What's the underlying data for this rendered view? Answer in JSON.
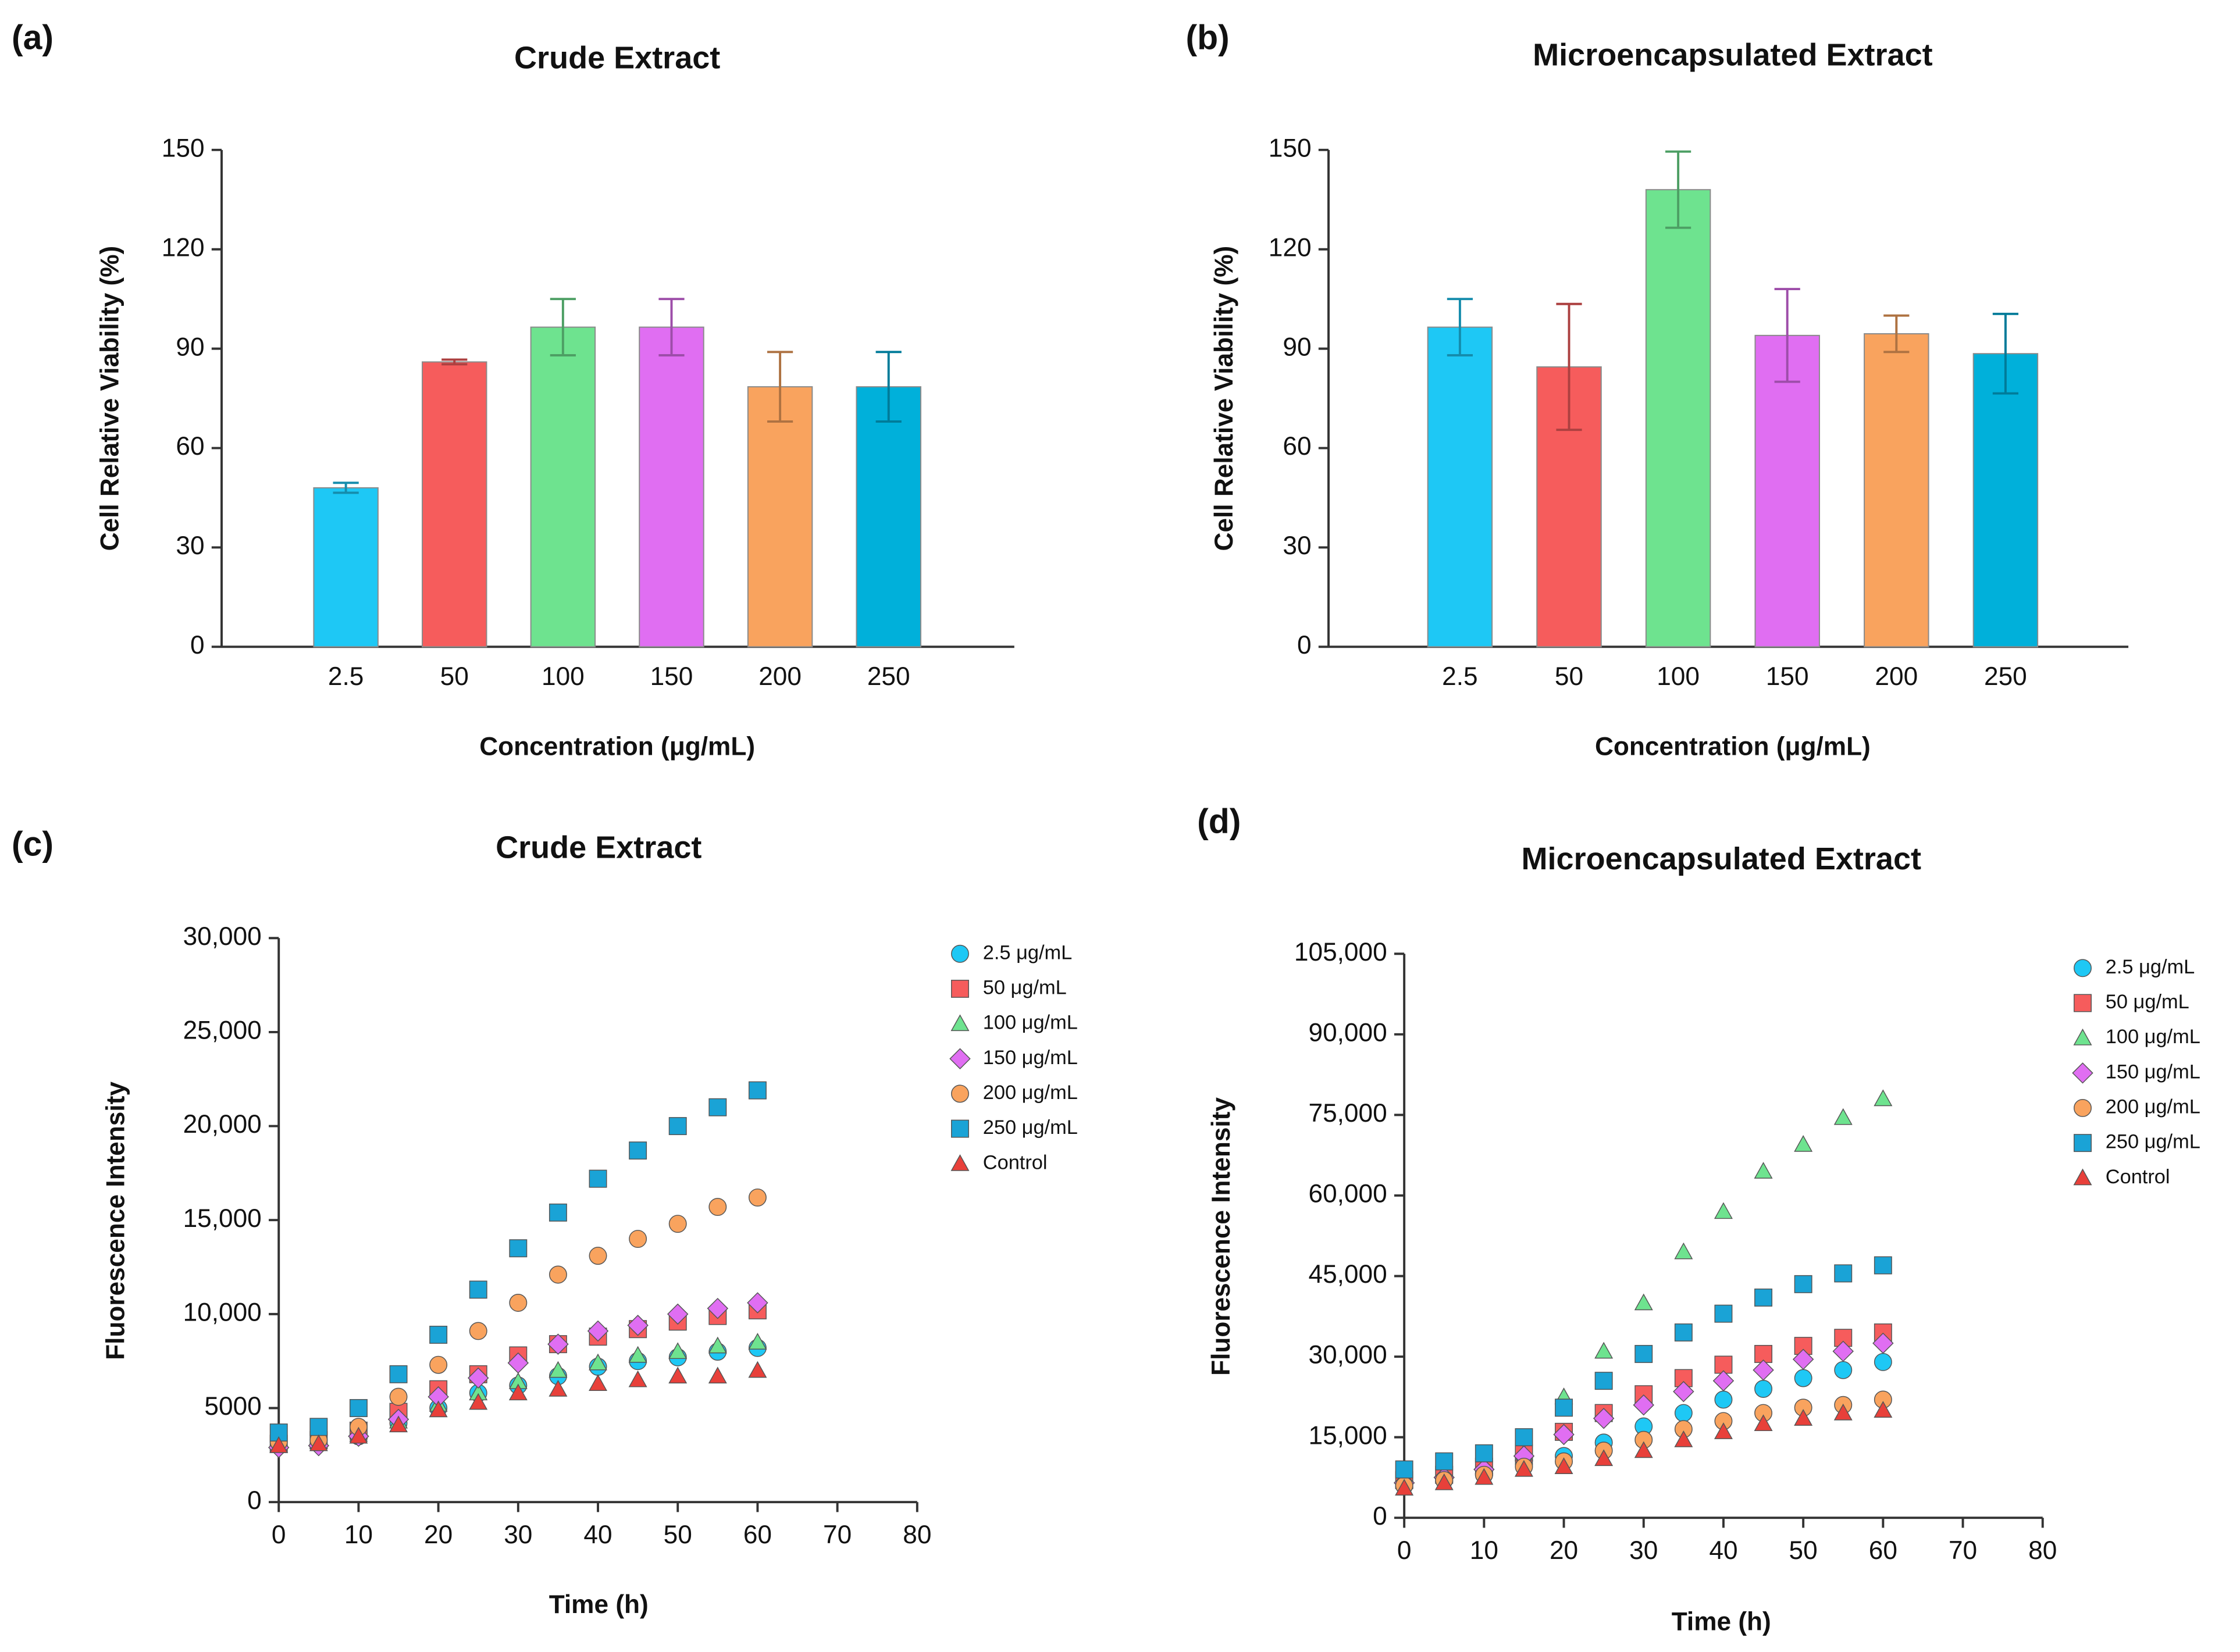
{
  "chart_data": [
    {
      "type": "bar",
      "panel_label": "(a)",
      "title": "Crude Extract",
      "x_label": "Concentration (μg/mL)",
      "y_label": "Cell Relative Viability (%)",
      "categories": [
        "2.5",
        "50",
        "100",
        "150",
        "200",
        "250"
      ],
      "values": [
        48,
        86,
        96.5,
        96.5,
        78.5,
        78.5
      ],
      "errors": [
        1.5,
        0.7,
        8.5,
        8.5,
        10.5,
        10.5
      ],
      "colors": [
        "#1ec8f5",
        "#f65c5c",
        "#6ee38f",
        "#e06ef2",
        "#f9a35e",
        "#00b0da"
      ],
      "ylim": [
        0,
        150
      ],
      "yticks": [
        0,
        30,
        60,
        90,
        120,
        150
      ]
    },
    {
      "type": "bar",
      "panel_label": "(b)",
      "title": "Microencapsulated Extract",
      "x_label": "Concentration (μg/mL)",
      "y_label": "Cell Relative Viability (%)",
      "categories": [
        "2.5",
        "50",
        "100",
        "150",
        "200",
        "250"
      ],
      "values": [
        96.5,
        84.5,
        138,
        94,
        94.5,
        88.5
      ],
      "errors": [
        8.5,
        19,
        11.5,
        14,
        5.5,
        12
      ],
      "colors": [
        "#1ec8f5",
        "#f65c5c",
        "#6ee38f",
        "#e06ef2",
        "#f9a35e",
        "#00b0da"
      ],
      "ylim": [
        0,
        150
      ],
      "yticks": [
        0,
        30,
        60,
        90,
        120,
        150
      ]
    },
    {
      "type": "scatter",
      "panel_label": "(c)",
      "title": "Crude Extract",
      "x_label": "Time (h)",
      "y_label": "Fluorescence Intensity",
      "x": [
        0,
        5,
        10,
        15,
        20,
        25,
        30,
        35,
        40,
        45,
        50,
        55,
        60
      ],
      "xlim": [
        0,
        80
      ],
      "xticks": [
        0,
        10,
        20,
        30,
        40,
        50,
        60,
        70,
        80
      ],
      "ylim": [
        0,
        30000
      ],
      "yticks": [
        0,
        5000,
        {
          "value": 10000,
          "label": "10,000"
        },
        {
          "value": 15000,
          "label": "15,000"
        },
        {
          "value": 20000,
          "label": "20,000"
        },
        {
          "value": 25000,
          "label": "25,000"
        },
        {
          "value": 30000,
          "label": "30,000"
        }
      ],
      "series": [
        {
          "name": "2.5 μg/mL",
          "color": "#1ec8f5",
          "marker": "circle",
          "values": [
            3000,
            3100,
            3500,
            4200,
            5000,
            5800,
            6200,
            6700,
            7200,
            7500,
            7700,
            8000,
            8200
          ]
        },
        {
          "name": "50 μg/mL",
          "color": "#f65c5c",
          "marker": "square",
          "values": [
            3100,
            3300,
            3800,
            4800,
            6000,
            6800,
            7800,
            8400,
            8800,
            9200,
            9600,
            9900,
            10200
          ]
        },
        {
          "name": "100 μg/mL",
          "color": "#6ee38f",
          "marker": "triangle",
          "values": [
            3000,
            3200,
            3600,
            4300,
            5200,
            5800,
            6400,
            7000,
            7400,
            7800,
            8000,
            8300,
            8500
          ]
        },
        {
          "name": "150 μg/mL",
          "color": "#e06ef2",
          "marker": "diamond",
          "values": [
            2900,
            3000,
            3500,
            4400,
            5600,
            6600,
            7400,
            8400,
            9100,
            9400,
            10000,
            10300,
            10600
          ]
        },
        {
          "name": "200 μg/mL",
          "color": "#f9a35e",
          "marker": "circle",
          "values": [
            3200,
            3300,
            4000,
            5600,
            7300,
            9100,
            10600,
            12100,
            13100,
            14000,
            14800,
            15700,
            16200
          ]
        },
        {
          "name": "250 μg/mL",
          "color": "#1aa3d6",
          "marker": "square",
          "values": [
            3700,
            4000,
            5000,
            6800,
            8900,
            11300,
            13500,
            15400,
            17200,
            18700,
            20000,
            21000,
            21900
          ]
        },
        {
          "name": "Control",
          "color": "#e8403a",
          "marker": "triangle",
          "values": [
            3000,
            3100,
            3500,
            4100,
            4900,
            5300,
            5800,
            6000,
            6300,
            6500,
            6700,
            6700,
            7000
          ]
        }
      ]
    },
    {
      "type": "scatter",
      "panel_label": "(d)",
      "title": "Microencapsulated Extract",
      "x_label": "Time (h)",
      "y_label": "Fluorescence Intensity",
      "x": [
        0,
        5,
        10,
        15,
        20,
        25,
        30,
        35,
        40,
        45,
        50,
        55,
        60
      ],
      "xlim": [
        0,
        80
      ],
      "xticks": [
        0,
        10,
        20,
        30,
        40,
        50,
        60,
        70,
        80
      ],
      "ylim": [
        0,
        105000
      ],
      "yticks": [
        0,
        {
          "value": 15000,
          "label": "15,000"
        },
        {
          "value": 30000,
          "label": "30,000"
        },
        {
          "value": 45000,
          "label": "45,000"
        },
        {
          "value": 60000,
          "label": "60,000"
        },
        {
          "value": 75000,
          "label": "75,000"
        },
        {
          "value": 90000,
          "label": "90,000"
        },
        {
          "value": 105000,
          "label": "105,000"
        }
      ],
      "series": [
        {
          "name": "2.5 μg/mL",
          "color": "#1ec8f5",
          "marker": "circle",
          "values": [
            6000,
            7000,
            8000,
            10000,
            11500,
            14000,
            17000,
            19500,
            22000,
            24000,
            26000,
            27500,
            29000
          ]
        },
        {
          "name": "50 μg/mL",
          "color": "#f65c5c",
          "marker": "square",
          "values": [
            7000,
            8000,
            9500,
            12000,
            16000,
            19500,
            23000,
            26000,
            28500,
            30500,
            32000,
            33500,
            34500
          ]
        },
        {
          "name": "100 μg/mL",
          "color": "#6ee38f",
          "marker": "triangle",
          "values": [
            7000,
            8000,
            9500,
            12000,
            22500,
            31000,
            40000,
            49500,
            57000,
            64500,
            69500,
            74500,
            78000
          ]
        },
        {
          "name": "150 μg/mL",
          "color": "#e06ef2",
          "marker": "diamond",
          "values": [
            6500,
            7500,
            9000,
            11500,
            15500,
            18500,
            21000,
            23500,
            25500,
            27500,
            29500,
            31000,
            32500
          ]
        },
        {
          "name": "200 μg/mL",
          "color": "#f9a35e",
          "marker": "circle",
          "values": [
            6000,
            7000,
            8000,
            9500,
            10500,
            12500,
            14500,
            16500,
            18000,
            19500,
            20500,
            21000,
            22000
          ]
        },
        {
          "name": "250 μg/mL",
          "color": "#1aa3d6",
          "marker": "square",
          "values": [
            9000,
            10500,
            12000,
            15000,
            20500,
            25500,
            30500,
            34500,
            38000,
            41000,
            43500,
            45500,
            47000
          ]
        },
        {
          "name": "Control",
          "color": "#e8403a",
          "marker": "triangle",
          "values": [
            5500,
            6500,
            7500,
            9000,
            9500,
            11000,
            12500,
            14500,
            16000,
            17500,
            18500,
            19500,
            20000
          ]
        }
      ]
    }
  ]
}
